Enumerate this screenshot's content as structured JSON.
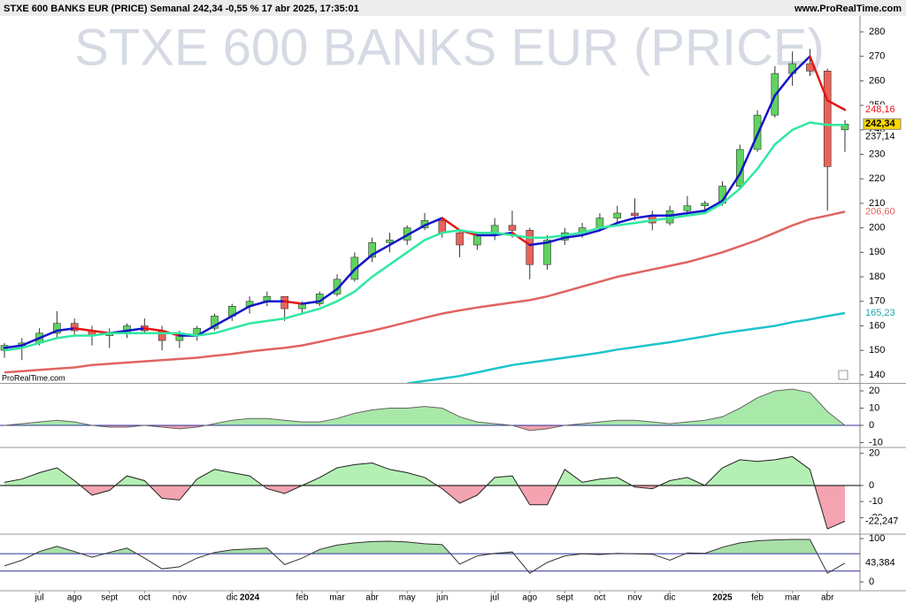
{
  "chart_data": [
    {
      "type": "candlestick",
      "title": "STXE 600 BANKS EUR (PRICE) Semanal 242,34 -0,55 % 17 abr 2025, 17:35:01",
      "source": "www.ProRealTime.com",
      "watermark": "STXE 600 BANKS EUR (PRICE)",
      "footnote": "ProRealTime.com",
      "categories": [
        null,
        null,
        "jul",
        null,
        "ago",
        null,
        "sept",
        null,
        "oct",
        null,
        "nov",
        null,
        null,
        "dic",
        "2024",
        null,
        null,
        "feb",
        null,
        "mar",
        null,
        "abr",
        null,
        "may",
        null,
        "jun",
        null,
        null,
        "jul",
        null,
        "ago",
        null,
        "sept",
        null,
        "oct",
        null,
        "nov",
        null,
        "dic",
        null,
        null,
        "2025",
        null,
        "feb",
        null,
        "mar",
        null,
        "abr",
        null
      ],
      "open": [
        150,
        152,
        153,
        157,
        161,
        158,
        156,
        157,
        160,
        158,
        154,
        156,
        159,
        164,
        168,
        170,
        172,
        167,
        169,
        173,
        179,
        188,
        194,
        195,
        200,
        203,
        198,
        193,
        197,
        201,
        199,
        185,
        195,
        198,
        200,
        204,
        206,
        205,
        202,
        207,
        209,
        210,
        217,
        232,
        246,
        263,
        267,
        264,
        240
      ],
      "high": [
        153,
        155,
        159,
        166,
        163,
        160,
        159,
        161,
        163,
        160,
        158,
        160,
        165,
        169,
        172,
        174,
        172,
        170,
        174,
        181,
        190,
        196,
        198,
        201,
        206,
        204,
        199,
        198,
        204,
        207,
        200,
        197,
        200,
        202,
        206,
        209,
        212,
        207,
        209,
        213,
        211,
        219,
        234,
        248,
        266,
        272,
        273,
        265,
        244
      ],
      "low": [
        147,
        146,
        152,
        155,
        156,
        152,
        151,
        155,
        157,
        150,
        151,
        154,
        158,
        162,
        165,
        168,
        162,
        165,
        168,
        172,
        178,
        186,
        190,
        193,
        199,
        196,
        188,
        191,
        195,
        196,
        179,
        183,
        193,
        196,
        199,
        202,
        203,
        199,
        201,
        205,
        206,
        209,
        216,
        231,
        245,
        258,
        262,
        207,
        231
      ],
      "close": [
        152,
        153,
        157,
        161,
        158,
        156,
        157,
        160,
        158,
        154,
        156,
        159,
        164,
        168,
        170,
        172,
        167,
        169,
        173,
        179,
        188,
        194,
        195,
        200,
        203,
        198,
        193,
        197,
        201,
        199,
        185,
        195,
        198,
        200,
        204,
        206,
        205,
        202,
        207,
        209,
        210,
        217,
        232,
        246,
        263,
        267,
        264,
        225,
        242.34
      ],
      "candle_colors": [
        "#5fd35f",
        "#e8645a"
      ],
      "series": [
        {
          "colors": [
            "#1414c8",
            "#e41414"
          ],
          "values": [
            151,
            152,
            155,
            158,
            159,
            158,
            157,
            158,
            159,
            158,
            156,
            156,
            160,
            164,
            168,
            170,
            170,
            169,
            170,
            175,
            183,
            189,
            193,
            197,
            201,
            204,
            199,
            197,
            197,
            198,
            193,
            194,
            196,
            197,
            199,
            202,
            204,
            205,
            205,
            206,
            207,
            211,
            222,
            238,
            254,
            263,
            270,
            252,
            248.16
          ]
        },
        {
          "color": "#30e8a0",
          "values": [
            150,
            151,
            153,
            155,
            156,
            156,
            157,
            157,
            157,
            157,
            157,
            156,
            157,
            159,
            161,
            162,
            163,
            165,
            167,
            170,
            174,
            180,
            185,
            190,
            195,
            198,
            199,
            198,
            198,
            197,
            196,
            196,
            197,
            198,
            200,
            201,
            202,
            203,
            204,
            205,
            206,
            210,
            216,
            224,
            234,
            240,
            243,
            242,
            242
          ]
        },
        {
          "color": "#e06460",
          "values": [
            141,
            141.5,
            142,
            142.5,
            143,
            144,
            144.5,
            145,
            145.5,
            146,
            146.5,
            147,
            147.8,
            148.5,
            149.5,
            150.3,
            151,
            152,
            153.5,
            155,
            156.5,
            158,
            159.7,
            161.5,
            163.3,
            165,
            166.3,
            167.5,
            168.5,
            169.5,
            170.5,
            172,
            174,
            176,
            178,
            180,
            181.5,
            183,
            184.5,
            186,
            188,
            190,
            192.5,
            195,
            198,
            201,
            203.5,
            205,
            206.6
          ]
        },
        {
          "color": "#20c4cc",
          "values": [
            null,
            null,
            null,
            null,
            null,
            null,
            null,
            null,
            null,
            null,
            null,
            null,
            null,
            null,
            null,
            null,
            null,
            null,
            null,
            null,
            null,
            null,
            null,
            136.5,
            137.5,
            138.5,
            139.5,
            141,
            142.5,
            144,
            145,
            146,
            147,
            148,
            149,
            150.3,
            151.3,
            152.3,
            153.3,
            154.5,
            155.7,
            157,
            158,
            159,
            160,
            161.5,
            162.6,
            164,
            165.23
          ]
        }
      ],
      "markers": [
        {
          "value": 248.16,
          "label": "248,16",
          "color": "#e41414"
        },
        {
          "value": 242.34,
          "label": "242,34",
          "color": "#000000",
          "background": "#ffd800"
        },
        {
          "value": 237.14,
          "label": "237,14",
          "color": "#000000"
        },
        {
          "value": 206.6,
          "label": "206,60",
          "color": "#e06460"
        },
        {
          "value": 165.23,
          "label": "165,23",
          "color": "#20a8b0"
        }
      ],
      "ylim": [
        136.7,
        286.5
      ],
      "yticks": [
        140,
        150,
        160,
        170,
        180,
        190,
        200,
        210,
        220,
        230,
        240,
        250,
        260,
        270,
        280
      ]
    },
    {
      "type": "area",
      "values": [
        0,
        1,
        2,
        3,
        2,
        0,
        -1,
        -1,
        0,
        -1,
        -2,
        -1,
        1,
        3,
        4,
        4,
        3,
        2,
        2,
        4,
        7,
        9,
        10,
        10,
        11,
        10,
        5,
        2,
        1,
        0,
        -3,
        -2,
        0,
        1,
        2,
        3,
        3,
        2,
        1,
        2,
        3,
        5,
        10,
        16,
        20,
        21,
        19,
        8,
        0
      ],
      "colors": [
        "#a8e8a8",
        "#f0a0a8"
      ],
      "line_color": "#666666",
      "zero_color": "#3030a0",
      "ylim": [
        -12.3,
        24.1
      ],
      "yticks": [
        20,
        10,
        0,
        -10
      ]
    },
    {
      "type": "area",
      "values": [
        2,
        4,
        8,
        11,
        3,
        -6,
        -3,
        6,
        3,
        -8,
        -9,
        4,
        10,
        8,
        6,
        -2,
        -5,
        0,
        5,
        11,
        13,
        14,
        10,
        8,
        5,
        -2,
        -11,
        -6,
        5,
        6,
        -12,
        -12,
        10,
        2,
        4,
        5,
        -1,
        -2,
        3,
        5,
        0,
        11,
        16,
        15,
        16,
        18,
        10,
        -27,
        -22.247
      ],
      "colors": [
        "#b4f0b4",
        "#f4a4b0"
      ],
      "line_color": "#222222",
      "zero_color": "#000000",
      "markers": [
        {
          "value": -22.247,
          "label": "-22,247",
          "color": "#000000"
        }
      ],
      "ylim": [
        -29.7,
        23.1
      ],
      "yticks": [
        20,
        0,
        -10,
        -20
      ]
    },
    {
      "type": "line",
      "values": [
        37,
        50,
        70,
        82,
        70,
        57,
        68,
        78,
        55,
        30,
        35,
        55,
        68,
        74,
        76,
        78,
        40,
        55,
        75,
        85,
        90,
        93,
        94,
        92,
        88,
        86,
        41,
        60,
        66,
        69,
        20,
        45,
        60,
        65,
        63,
        66,
        65,
        64,
        50,
        67,
        66,
        80,
        90,
        95,
        97,
        98,
        98,
        20,
        43.384
      ],
      "levels": [
        65,
        25
      ],
      "color": "#333333",
      "level_color": "#3030a0",
      "fill": "#a8e0a8",
      "markers": [
        {
          "value": 43.384,
          "label": "43,384",
          "color": "#000000"
        }
      ],
      "ylim": [
        -20.4,
        108.2
      ],
      "yticks": [
        100,
        0
      ]
    }
  ]
}
